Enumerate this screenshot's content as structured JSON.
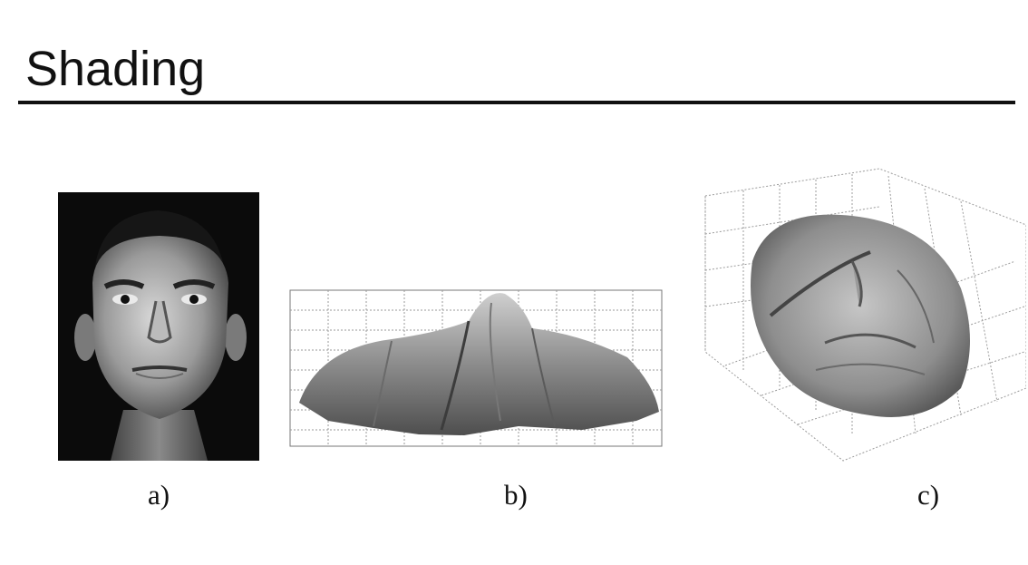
{
  "slide": {
    "title": "Shading"
  },
  "figures": [
    {
      "caption": "a)",
      "content": "grayscale face photograph"
    },
    {
      "caption": "b)",
      "content": "3D surface reconstruction, side view"
    },
    {
      "caption": "c)",
      "content": "3D surface reconstruction, oblique view"
    }
  ]
}
